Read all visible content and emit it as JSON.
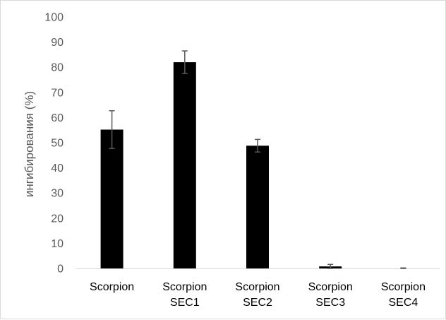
{
  "chart_data": {
    "type": "bar",
    "categories": [
      [
        "Scorpion"
      ],
      [
        "Scorpion",
        "SEC1"
      ],
      [
        "Scorpion",
        "SEC2"
      ],
      [
        "Scorpion",
        "SEC3"
      ],
      [
        "Scorpion",
        "SEC4"
      ]
    ],
    "values": [
      55.2,
      82.0,
      48.8,
      0.8,
      0.0
    ],
    "errors": [
      7.5,
      4.5,
      2.5,
      0.8,
      0.2
    ],
    "title": "",
    "xlabel": "",
    "ylabel": "ингибирования (%)",
    "ylim": [
      0,
      100
    ],
    "yticks": [
      "0",
      "10",
      "20",
      "30",
      "40",
      "50",
      "60",
      "70",
      "80",
      "90",
      "100"
    ],
    "grid": false,
    "legend": "none",
    "colors": {
      "bar": "#000000",
      "error_bar": "#595959",
      "axis": "#d9d9d9"
    }
  }
}
